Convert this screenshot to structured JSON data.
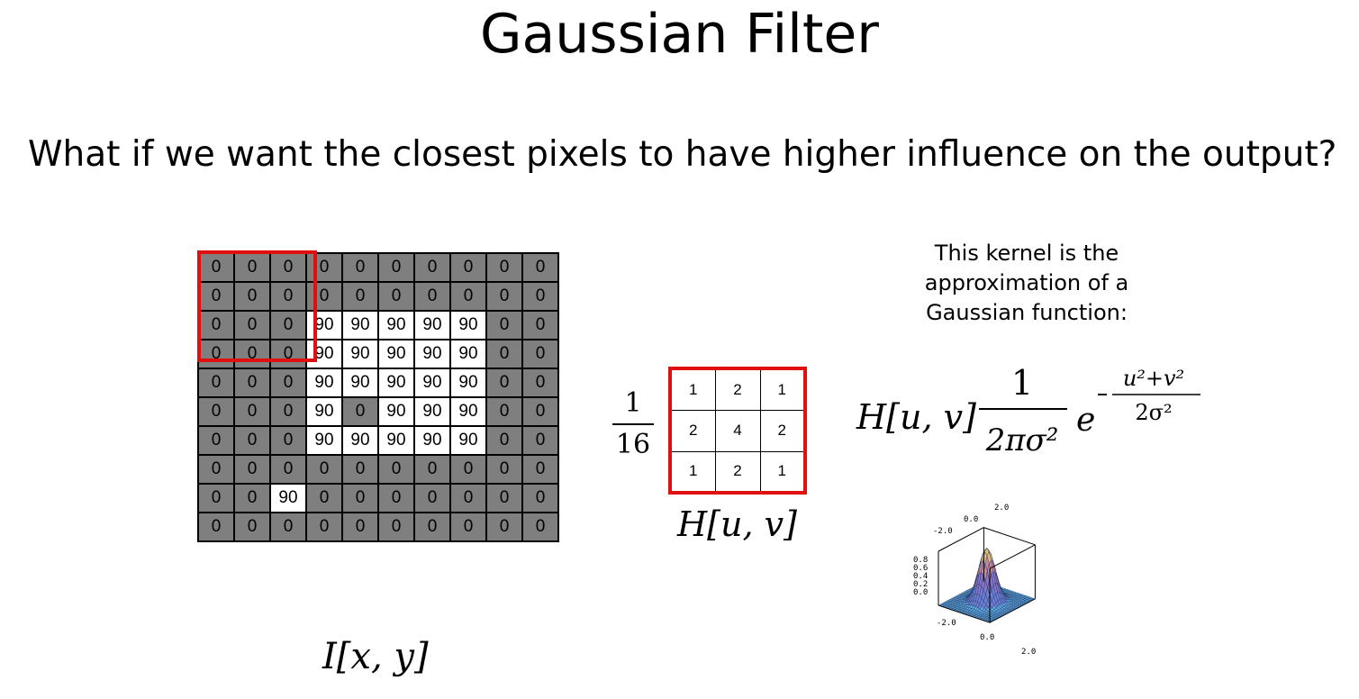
{
  "slide": {
    "title": "Gaussian Filter",
    "question": "What if we want the closest pixels to have higher influence on the output?"
  },
  "image_grid": {
    "rows": [
      [
        "0",
        "0",
        "0",
        "0",
        "0",
        "0",
        "0",
        "0",
        "0",
        "0"
      ],
      [
        "0",
        "0",
        "0",
        "0",
        "0",
        "0",
        "0",
        "0",
        "0",
        "0"
      ],
      [
        "0",
        "0",
        "0",
        "90",
        "90",
        "90",
        "90",
        "90",
        "0",
        "0"
      ],
      [
        "0",
        "0",
        "0",
        "90",
        "90",
        "90",
        "90",
        "90",
        "0",
        "0"
      ],
      [
        "0",
        "0",
        "0",
        "90",
        "90",
        "90",
        "90",
        "90",
        "0",
        "0"
      ],
      [
        "0",
        "0",
        "0",
        "90",
        "0",
        "90",
        "90",
        "90",
        "0",
        "0"
      ],
      [
        "0",
        "0",
        "0",
        "90",
        "90",
        "90",
        "90",
        "90",
        "0",
        "0"
      ],
      [
        "0",
        "0",
        "0",
        "0",
        "0",
        "0",
        "0",
        "0",
        "0",
        "0"
      ],
      [
        "0",
        "0",
        "90",
        "0",
        "0",
        "0",
        "0",
        "0",
        "0",
        "0"
      ],
      [
        "0",
        "0",
        "0",
        "0",
        "0",
        "0",
        "0",
        "0",
        "0",
        "0"
      ]
    ],
    "label": "I[x, y]",
    "colors": {
      "zero": "#7f7f7f",
      "high": "#ffffff",
      "window": "#e01010"
    }
  },
  "kernel": {
    "scale_numerator": "1",
    "scale_denominator": "16",
    "rows": [
      [
        "1",
        "2",
        "1"
      ],
      [
        "2",
        "4",
        "2"
      ],
      [
        "1",
        "2",
        "1"
      ]
    ],
    "label": "H[u, v]"
  },
  "note": {
    "lines": [
      "This kernel is the",
      "approximation of a",
      "Gaussian function:"
    ]
  },
  "formula": {
    "lhs": "H[u, v]",
    "numerator": "1",
    "denominator": "2πσ²",
    "base": "e",
    "exp_numerator": "u²+v²",
    "exp_denominator": "2σ²"
  },
  "surface_plot": {
    "z_ticks": [
      "0.8",
      "0.6",
      "0.4",
      "0.2",
      "0.0"
    ],
    "x_ticks": [
      "-2.0",
      "0.0",
      "2.0"
    ],
    "y_ticks": [
      "-2.0",
      "0.0",
      "2.0"
    ]
  }
}
